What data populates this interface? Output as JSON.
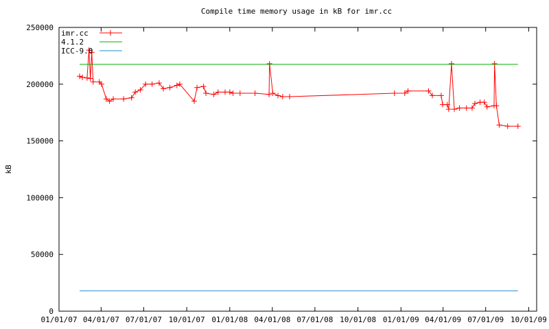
{
  "chart_data": {
    "type": "line",
    "title": "Compile time memory usage in kB for imr.cc",
    "y_label": "kB",
    "xlim": [
      "2007-01-01",
      "2009-10-18"
    ],
    "xticks": [
      {
        "value": "2007-01-01",
        "label": "01/01/07"
      },
      {
        "value": "2007-04-01",
        "label": "04/01/07"
      },
      {
        "value": "2007-07-01",
        "label": "07/01/07"
      },
      {
        "value": "2007-10-01",
        "label": "10/01/07"
      },
      {
        "value": "2008-01-01",
        "label": "01/01/08"
      },
      {
        "value": "2008-04-01",
        "label": "04/01/08"
      },
      {
        "value": "2008-07-01",
        "label": "07/01/08"
      },
      {
        "value": "2008-10-01",
        "label": "10/01/08"
      },
      {
        "value": "2009-01-01",
        "label": "01/01/09"
      },
      {
        "value": "2009-04-01",
        "label": "04/01/09"
      },
      {
        "value": "2009-07-01",
        "label": "07/01/09"
      },
      {
        "value": "2009-10-01",
        "label": "10/01/09"
      }
    ],
    "ylim": [
      0,
      250000
    ],
    "yticks": [
      0,
      50000,
      100000,
      150000,
      200000,
      250000
    ],
    "legend": "top-left",
    "series": [
      {
        "name": "imr.cc",
        "color": "#ff0000",
        "points": true,
        "x": [
          "2007-02-14",
          "2007-02-20",
          "2007-03-02",
          "2007-03-06",
          "2007-03-09",
          "2007-03-12",
          "2007-03-15",
          "2007-03-28",
          "2007-04-02",
          "2007-04-12",
          "2007-04-19",
          "2007-04-27",
          "2007-05-19",
          "2007-06-05",
          "2007-06-13",
          "2007-06-24",
          "2007-07-05",
          "2007-07-19",
          "2007-08-03",
          "2007-08-12",
          "2007-08-26",
          "2007-09-10",
          "2007-09-16",
          "2007-10-17",
          "2007-10-23",
          "2007-11-06",
          "2007-11-11",
          "2007-11-28",
          "2007-12-07",
          "2007-12-22",
          "2008-01-01",
          "2008-01-08",
          "2008-01-23",
          "2008-02-24",
          "2008-03-25",
          "2008-03-26",
          "2008-04-02",
          "2008-04-13",
          "2008-04-23",
          "2008-05-08",
          "2008-12-18",
          "2009-01-09",
          "2009-01-16",
          "2009-03-01",
          "2009-03-09",
          "2009-03-28",
          "2009-03-31",
          "2009-04-10",
          "2009-04-13",
          "2009-04-19",
          "2009-04-25",
          "2009-05-06",
          "2009-05-21",
          "2009-06-02",
          "2009-06-08",
          "2009-06-19",
          "2009-06-28",
          "2009-07-04",
          "2009-07-19",
          "2009-07-20",
          "2009-07-24",
          "2009-07-30",
          "2009-08-17",
          "2009-09-08"
        ],
        "values": [
          207000,
          206000,
          205500,
          230000,
          205000,
          228000,
          202000,
          202000,
          200000,
          187000,
          185000,
          187000,
          187000,
          188000,
          193000,
          195000,
          200000,
          200000,
          201000,
          196000,
          197000,
          199000,
          200000,
          185000,
          197000,
          198000,
          192000,
          191000,
          193000,
          193000,
          193000,
          192000,
          192000,
          192000,
          191000,
          218000,
          192000,
          190000,
          189000,
          189000,
          192000,
          192000,
          194000,
          194000,
          190000,
          190000,
          182000,
          182000,
          178000,
          218000,
          178000,
          179000,
          179000,
          179000,
          183000,
          184000,
          184000,
          180000,
          181000,
          218000,
          181000,
          164000,
          163000,
          163000
        ]
      },
      {
        "name": "4.1.2",
        "color": "#00b000",
        "points": false,
        "x": [
          "2007-02-14",
          "2009-09-08"
        ],
        "values": [
          217500,
          217500
        ]
      },
      {
        "name": "ICC-9.0",
        "color": "#1e8cc8",
        "points": false,
        "x": [
          "2007-02-14",
          "2009-09-08"
        ],
        "values": [
          18000,
          18000
        ]
      }
    ]
  }
}
